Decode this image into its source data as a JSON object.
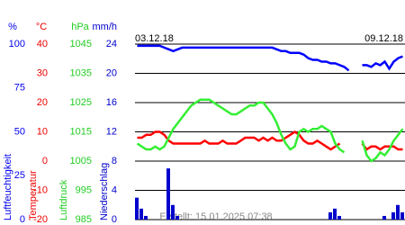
{
  "chart_data": {
    "type": "line",
    "date_start": "03.12.18",
    "date_end": "09.12.18",
    "footer": "Erstellt: 15.01.2025 07:38",
    "grid": true,
    "axes": [
      {
        "unit": "%",
        "label": "Luftfeuchtigkeit",
        "color": "#0000ee",
        "ylim": [
          0,
          100
        ],
        "yticks": [
          0,
          25,
          50,
          75,
          100
        ]
      },
      {
        "unit": "°C",
        "label": "Temperatur",
        "color": "#ee0000",
        "ylim": [
          -20,
          40
        ],
        "yticks": [
          -20,
          -10,
          0,
          10,
          20,
          30,
          40
        ]
      },
      {
        "unit": "hPa",
        "label": "Luftdruck",
        "color": "#22cc22",
        "ylim": [
          985,
          1045
        ],
        "yticks": [
          985,
          995,
          1005,
          1015,
          1025,
          1035,
          1045
        ]
      },
      {
        "unit": "mm/h",
        "label": "Niederschlag",
        "color": "#0000cc",
        "ylim": [
          0,
          24
        ],
        "yticks": [
          0,
          4,
          8,
          12,
          16,
          20,
          24
        ]
      }
    ],
    "series": [
      {
        "type": "line",
        "axis": 0,
        "color": "#0000ff",
        "values": [
          99,
          99,
          99,
          99,
          99,
          99,
          98,
          97,
          96,
          97,
          98,
          98,
          98,
          98,
          98,
          98,
          98,
          98,
          98,
          98,
          98,
          98,
          98,
          98,
          98,
          98,
          98,
          98,
          98,
          98,
          98,
          97,
          96,
          96,
          95,
          95,
          95,
          94,
          92,
          91,
          91,
          90,
          90,
          89,
          89,
          88,
          87,
          85,
          null,
          null,
          88,
          88,
          87,
          89,
          88,
          90,
          86,
          90,
          92,
          93
        ]
      },
      {
        "type": "line",
        "axis": 1,
        "color": "#ff0000",
        "values": [
          8,
          8,
          9,
          9,
          10,
          10,
          9,
          7,
          6,
          6,
          6,
          6,
          6,
          6,
          6,
          7,
          6,
          6,
          6,
          7,
          6,
          6,
          6,
          7,
          8,
          8,
          8,
          7,
          8,
          7,
          8,
          7,
          7,
          8,
          9,
          10,
          9,
          7,
          6,
          6,
          7,
          6,
          5,
          4,
          5,
          6,
          null,
          null,
          null,
          null,
          6,
          4,
          5,
          5,
          4,
          5,
          5,
          5,
          4,
          4
        ]
      },
      {
        "type": "line",
        "axis": 2,
        "color": "#33ee33",
        "values": [
          1011,
          1010,
          1009,
          1009,
          1010,
          1009,
          1010,
          1013,
          1016,
          1018,
          1020,
          1022,
          1024,
          1025,
          1026,
          1026,
          1026,
          1025,
          1024,
          1023,
          1022,
          1021,
          1021,
          1022,
          1023,
          1024,
          1024,
          1025,
          1025,
          1023,
          1021,
          1018,
          1014,
          1011,
          1009,
          1010,
          1015,
          1016,
          1015,
          1016,
          1016,
          1017,
          1016,
          1015,
          1011,
          1009,
          1008,
          null,
          null,
          null,
          1012,
          1007,
          1005,
          1006,
          1008,
          1007,
          1009,
          1012,
          1014,
          1016
        ]
      },
      {
        "type": "bar",
        "axis": 3,
        "color": "#0000cc",
        "values": [
          3,
          1.5,
          0.5,
          0,
          0,
          0,
          0,
          7,
          2,
          0.5,
          0,
          0,
          0,
          0,
          0,
          0,
          0,
          0,
          0,
          0,
          0,
          0,
          0,
          0,
          0,
          0,
          0,
          0,
          0,
          0,
          0,
          0,
          0,
          0,
          0,
          0,
          0,
          0,
          0,
          0,
          0,
          0,
          0,
          1,
          1.5,
          0.5,
          0,
          0,
          0,
          0,
          0,
          0,
          0,
          0,
          0,
          0.5,
          0,
          1,
          2,
          1
        ]
      }
    ]
  }
}
